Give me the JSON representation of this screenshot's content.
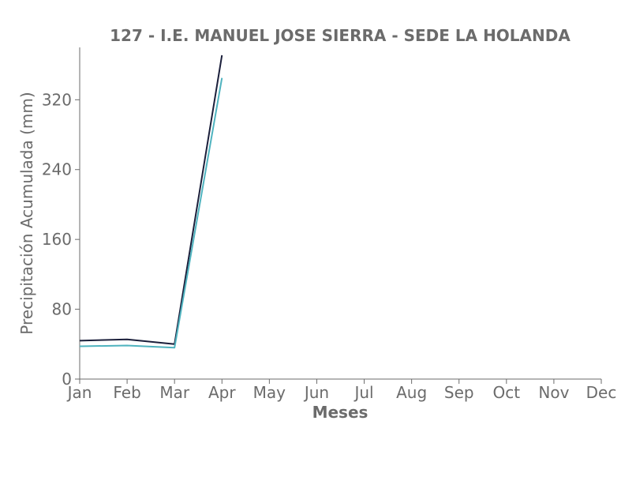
{
  "chart_data": {
    "type": "line",
    "title": "127 - I.E. MANUEL JOSE SIERRA - SEDE LA HOLANDA",
    "xlabel": "Meses",
    "ylabel": "Precipitación Acumulada (mm)",
    "categories": [
      "Jan",
      "Feb",
      "Mar",
      "Apr",
      "May",
      "Jun",
      "Jul",
      "Aug",
      "Sep",
      "Oct",
      "Nov",
      "Dec"
    ],
    "ylim": [
      0,
      380
    ],
    "yticks": [
      0,
      80,
      160,
      240,
      320
    ],
    "grid": false,
    "series": [
      {
        "color": "#1b1f3b",
        "values": [
          44,
          45.5,
          40,
          371,
          null,
          null,
          null,
          null,
          null,
          null,
          null,
          null
        ]
      },
      {
        "color": "#4fb3bf",
        "values": [
          37.5,
          38.5,
          36,
          345,
          null,
          null,
          null,
          null,
          null,
          null,
          null,
          null
        ]
      }
    ]
  },
  "colors": {
    "text": "#6b6b6b",
    "axis": "#6b6b6b"
  }
}
